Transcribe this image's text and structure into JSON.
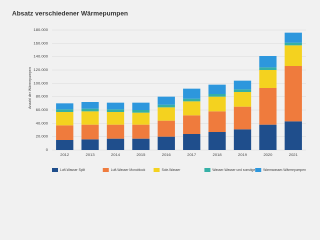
{
  "chart_data": {
    "type": "stacked-bar",
    "title": "Absatz verschiedener Wärmepumpen",
    "y_label": "Anzahl der Wärmepumpen",
    "categories": [
      "2012",
      "2013",
      "2014",
      "2015",
      "2016",
      "2017",
      "2018",
      "2019",
      "2020",
      "2021"
    ],
    "series": [
      {
        "name": "Luft-Wasser Split",
        "color": "#1f4e8c",
        "values": [
          15000,
          16000,
          17000,
          17000,
          20000,
          24000,
          27000,
          31000,
          38000,
          43000
        ]
      },
      {
        "name": "Luft-Wasser Monoblock",
        "color": "#ef7b3d",
        "values": [
          22000,
          22000,
          21000,
          21000,
          24000,
          28000,
          31000,
          34000,
          55000,
          83000
        ]
      },
      {
        "name": "Sole-Wasser",
        "color": "#f4d21f",
        "values": [
          20000,
          20000,
          19000,
          18000,
          20000,
          21000,
          22000,
          22000,
          27000,
          31000
        ]
      },
      {
        "name": "Wasser-Wasser und sonstige",
        "color": "#35b0a6",
        "values": [
          4000,
          4000,
          4000,
          4000,
          4000,
          4000,
          4000,
          4000,
          4000,
          4000
        ]
      },
      {
        "name": "Warmwasser-Wärmepumpen",
        "color": "#2d97dd",
        "values": [
          9000,
          10000,
          10000,
          11000,
          12000,
          15000,
          14000,
          13000,
          17000,
          15000
        ]
      }
    ],
    "ylim": [
      0,
      180000
    ],
    "yticks": [
      0,
      {
        "value": 20000,
        "label": "20.000"
      },
      {
        "value": 40000,
        "label": "40.000"
      },
      {
        "value": 60000,
        "label": "60.000"
      },
      {
        "value": 80000,
        "label": "80.000"
      },
      {
        "value": 100000,
        "label": "100.000"
      },
      {
        "value": 120000,
        "label": "120.000"
      },
      {
        "value": 140000,
        "label": "140.000"
      },
      {
        "value": 160000,
        "label": "160.000"
      },
      {
        "value": 180000,
        "label": "180.000"
      }
    ],
    "grid": true
  }
}
